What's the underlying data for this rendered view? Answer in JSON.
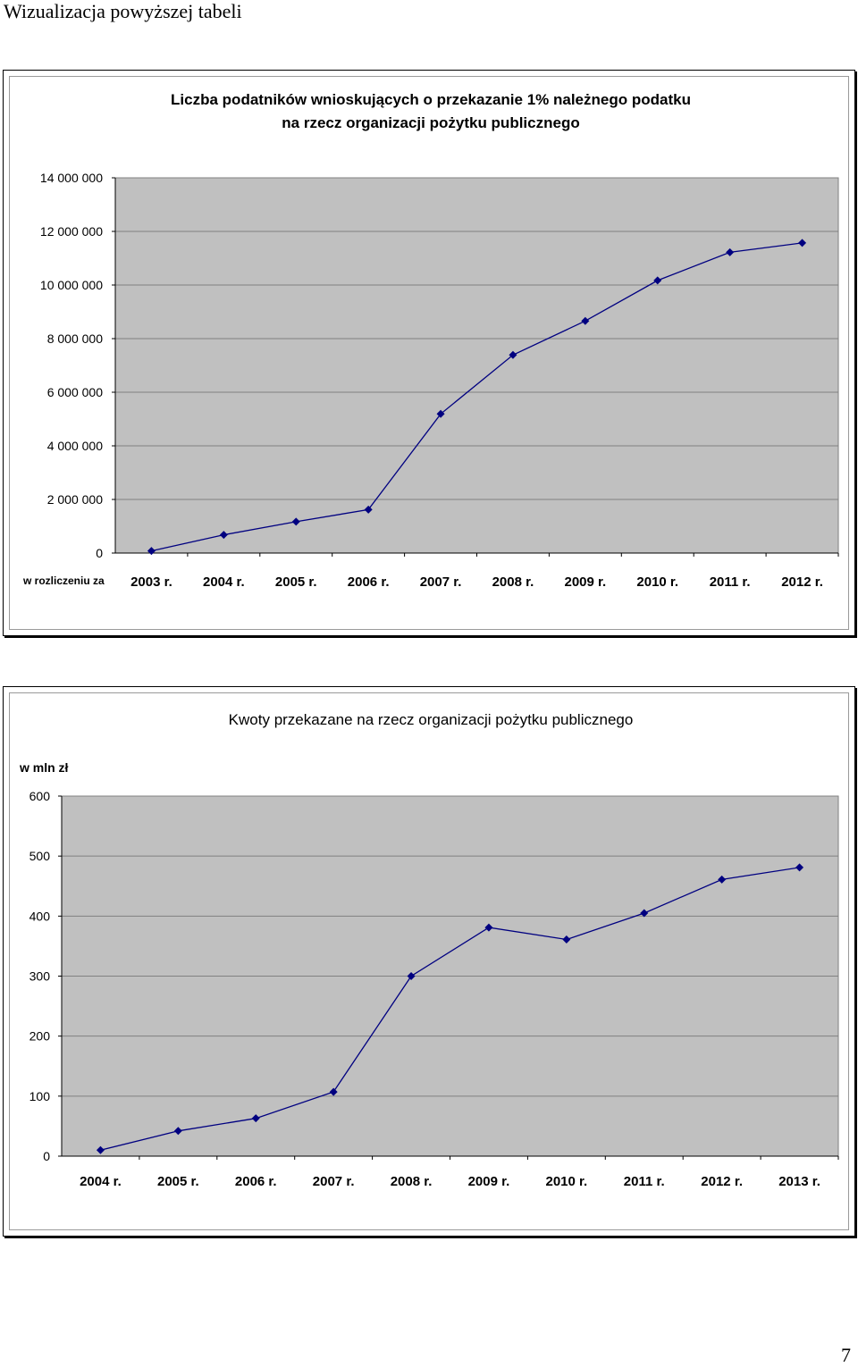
{
  "page": {
    "heading": "Wizualizacja powyższej tabeli",
    "page_number": "7"
  },
  "colors": {
    "plot_background": "#c0c0c0",
    "series_line": "#000080",
    "gridline": "#808080"
  },
  "chart_data": [
    {
      "type": "line",
      "title_lines": [
        "Liczba podatników wnioskujących o przekazanie 1% należnego podatku",
        "na rzecz organizacji pożytku publicznego"
      ],
      "xlabel": "w rozliczeniu za",
      "ylabel": "",
      "categories": [
        "2003 r.",
        "2004 r.",
        "2005 r.",
        "2006 r.",
        "2007 r.",
        "2008 r.",
        "2009 r.",
        "2010 r.",
        "2011 r.",
        "2012 r."
      ],
      "series": [
        {
          "values": [
            80000,
            680000,
            1170000,
            1620000,
            5190000,
            7390000,
            8660000,
            10170000,
            11220000,
            11570000
          ]
        }
      ],
      "ylim": [
        0,
        14000000
      ],
      "yticks": [
        0,
        2000000,
        4000000,
        6000000,
        8000000,
        10000000,
        12000000,
        14000000
      ],
      "ytick_labels": [
        "0",
        "2 000 000",
        "4 000 000",
        "6 000 000",
        "8 000 000",
        "10 000 000",
        "12 000 000",
        "14 000 000"
      ],
      "grid": true,
      "legend": "none"
    },
    {
      "type": "line",
      "title_lines": [
        "Kwoty przekazane na rzecz organizacji pożytku publicznego"
      ],
      "xlabel": "",
      "ylabel": "w mln zł",
      "categories": [
        "2004 r.",
        "2005 r.",
        "2006 r.",
        "2007 r.",
        "2008 r.",
        "2009 r.",
        "2010 r.",
        "2011 r.",
        "2012 r.",
        "2013 r."
      ],
      "series": [
        {
          "values": [
            10,
            42,
            63,
            107,
            300,
            381,
            361,
            405,
            461,
            481
          ]
        }
      ],
      "ylim": [
        0,
        600
      ],
      "yticks": [
        0,
        100,
        200,
        300,
        400,
        500,
        600
      ],
      "ytick_labels": [
        "0",
        "100",
        "200",
        "300",
        "400",
        "500",
        "600"
      ],
      "grid": true,
      "legend": "none"
    }
  ]
}
